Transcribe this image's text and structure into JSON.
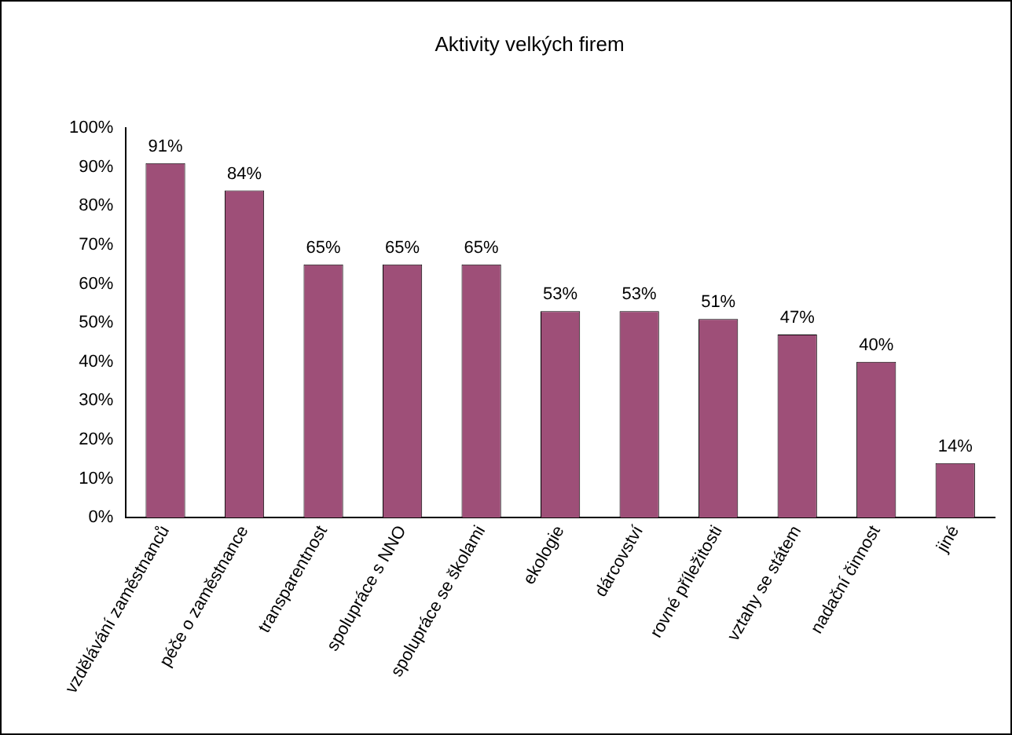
{
  "chart_data": {
    "type": "bar",
    "title": "Aktivity velkých firem",
    "categories": [
      "vzdělávání zaměstnanců",
      "péče o zaměstnance",
      "transparentnost",
      "spolupráce s NNO",
      "spolupráce se školami",
      "ekologie",
      "dárcovství",
      "rovné příležitosti",
      "vztahy se státem",
      "nadační činnost",
      "jiné"
    ],
    "values": [
      91,
      84,
      65,
      65,
      65,
      53,
      53,
      51,
      47,
      40,
      14
    ],
    "value_labels": [
      "91%",
      "84%",
      "65%",
      "65%",
      "65%",
      "53%",
      "53%",
      "51%",
      "47%",
      "40%",
      "14%"
    ],
    "color": "#9e4f78",
    "ylim": [
      0,
      100
    ],
    "yticks": [
      {
        "value": 0,
        "label": "0%"
      },
      {
        "value": 10,
        "label": "10%"
      },
      {
        "value": 20,
        "label": "20%"
      },
      {
        "value": 30,
        "label": "30%"
      },
      {
        "value": 40,
        "label": "40%"
      },
      {
        "value": 50,
        "label": "50%"
      },
      {
        "value": 60,
        "label": "60%"
      },
      {
        "value": 70,
        "label": "70%"
      },
      {
        "value": 80,
        "label": "80%"
      },
      {
        "value": 90,
        "label": "90%"
      },
      {
        "value": 100,
        "label": "100%"
      }
    ],
    "grid": false,
    "legend": false
  }
}
